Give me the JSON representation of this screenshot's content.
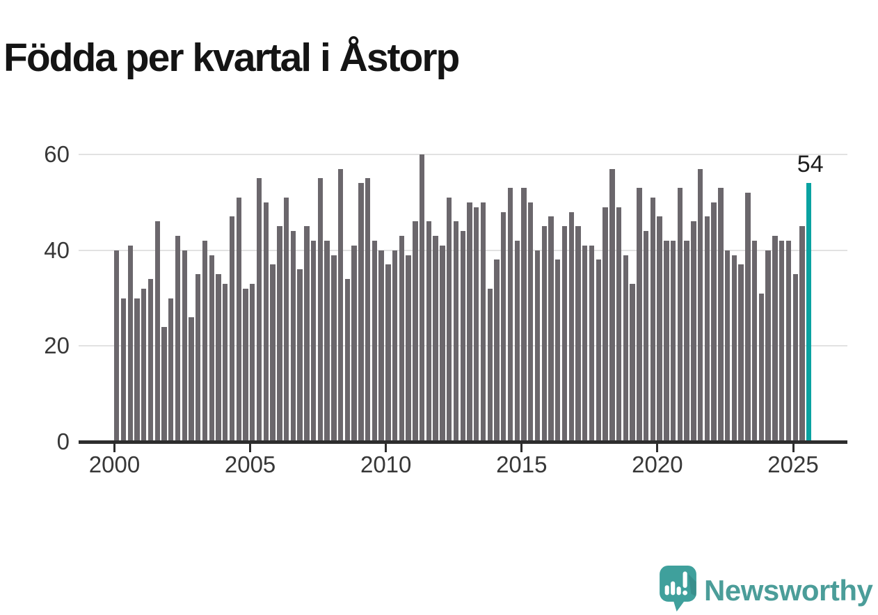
{
  "title": "Födda per kvartal i Åstorp",
  "annotation": {
    "value": "54"
  },
  "branding": {
    "name": "Newsworthy"
  },
  "colors": {
    "bar": "#6b676c",
    "highlight": "#09a2a1",
    "axis": "#2d2d2d",
    "grid": "#e2e2e2",
    "logo_teal": "#3fa09c",
    "logotype_text": "#4b9d99"
  },
  "chart_data": {
    "type": "bar",
    "title": "Födda per kvartal i Åstorp",
    "x_start": "2000-Q1",
    "x_end": "2025-Q3",
    "frequency": "quarterly",
    "x_tick_labels": [
      "2000",
      "2005",
      "2010",
      "2015",
      "2020",
      "2025"
    ],
    "y_ticks": [
      0,
      20,
      40,
      60
    ],
    "ylim": [
      0,
      60
    ],
    "grid": true,
    "values": [
      40,
      30,
      41,
      30,
      32,
      34,
      46,
      24,
      30,
      43,
      40,
      26,
      35,
      42,
      39,
      35,
      33,
      47,
      51,
      32,
      33,
      55,
      50,
      37,
      45,
      51,
      44,
      36,
      45,
      42,
      55,
      42,
      39,
      57,
      34,
      41,
      54,
      55,
      42,
      40,
      37,
      40,
      43,
      39,
      46,
      60,
      46,
      43,
      41,
      51,
      46,
      44,
      50,
      49,
      50,
      32,
      38,
      48,
      53,
      42,
      53,
      50,
      40,
      45,
      47,
      38,
      45,
      48,
      45,
      41,
      41,
      38,
      49,
      57,
      49,
      39,
      33,
      53,
      44,
      51,
      47,
      42,
      42,
      53,
      42,
      46,
      57,
      47,
      50,
      53,
      40,
      39,
      37,
      52,
      42,
      31,
      40,
      43,
      42,
      42,
      35,
      45,
      54
    ],
    "highlight_index": 102,
    "highlight_value": 54,
    "highlight_label": "54"
  }
}
